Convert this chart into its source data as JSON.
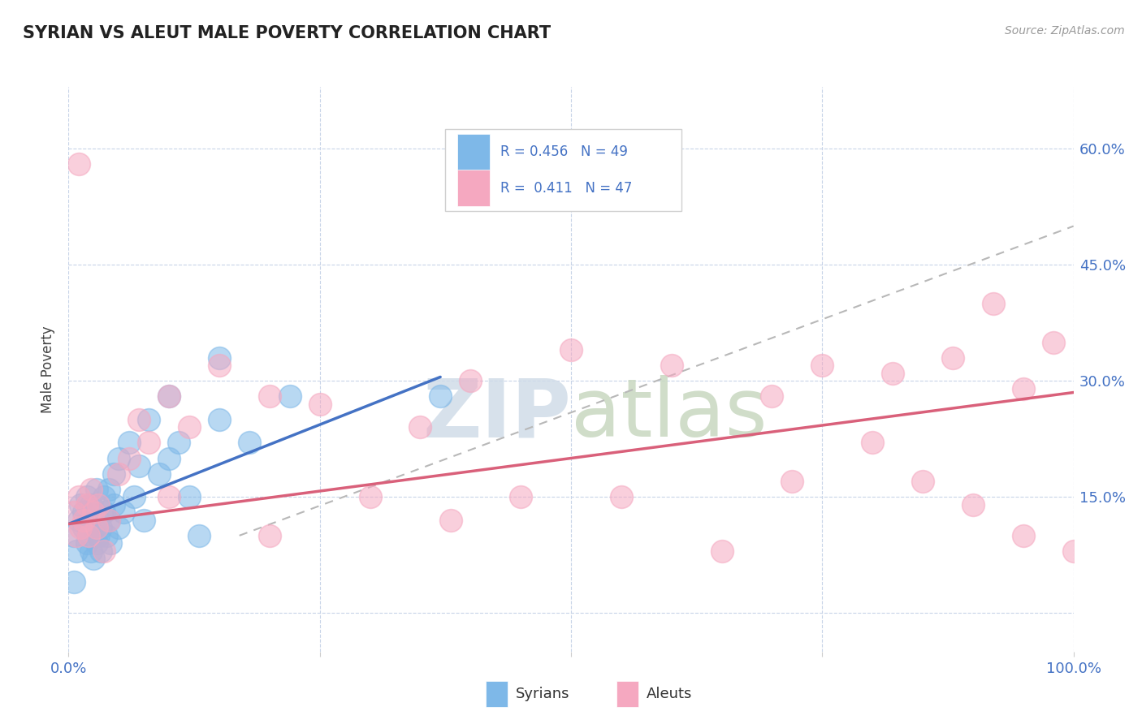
{
  "title": "SYRIAN VS ALEUT MALE POVERTY CORRELATION CHART",
  "source": "Source: ZipAtlas.com",
  "ylabel": "Male Poverty",
  "xlim": [
    0,
    1.0
  ],
  "ylim": [
    -0.05,
    0.68
  ],
  "ytick_positions": [
    0.0,
    0.15,
    0.3,
    0.45,
    0.6
  ],
  "ytick_labels": [
    "",
    "15.0%",
    "30.0%",
    "45.0%",
    "60.0%"
  ],
  "syrian_R": 0.456,
  "syrian_N": 49,
  "aleut_R": 0.411,
  "aleut_N": 47,
  "syrian_color": "#7eb8e8",
  "aleut_color": "#f5a8c0",
  "syrian_line_color": "#4472c4",
  "aleut_line_color": "#d9607a",
  "trend_line_color": "#b8b8b8",
  "background_color": "#ffffff",
  "grid_color": "#c8d4e8",
  "title_color": "#222222",
  "axis_label_color": "#4472c4",
  "watermark_color": "#d0dce8",
  "legend_box_color": "#f0f0f0",
  "legend_border_color": "#d0d0d0",
  "syrian_line_x": [
    0.0,
    0.37
  ],
  "syrian_line_y": [
    0.115,
    0.305
  ],
  "aleut_line_x": [
    0.0,
    1.0
  ],
  "aleut_line_y": [
    0.115,
    0.285
  ],
  "trend_line_x": [
    0.17,
    1.0
  ],
  "trend_line_y": [
    0.1,
    0.5
  ],
  "syrian_x": [
    0.005,
    0.008,
    0.01,
    0.012,
    0.015,
    0.015,
    0.018,
    0.018,
    0.02,
    0.02,
    0.022,
    0.022,
    0.025,
    0.025,
    0.025,
    0.028,
    0.028,
    0.03,
    0.03,
    0.032,
    0.032,
    0.035,
    0.035,
    0.038,
    0.04,
    0.04,
    0.042,
    0.045,
    0.045,
    0.05,
    0.05,
    0.055,
    0.06,
    0.065,
    0.07,
    0.075,
    0.08,
    0.09,
    0.1,
    0.1,
    0.11,
    0.12,
    0.13,
    0.15,
    0.15,
    0.18,
    0.22,
    0.37,
    0.005
  ],
  "syrian_y": [
    0.1,
    0.08,
    0.12,
    0.14,
    0.11,
    0.13,
    0.09,
    0.15,
    0.1,
    0.12,
    0.08,
    0.14,
    0.11,
    0.13,
    0.07,
    0.16,
    0.09,
    0.1,
    0.12,
    0.11,
    0.08,
    0.13,
    0.15,
    0.1,
    0.12,
    0.16,
    0.09,
    0.14,
    0.18,
    0.11,
    0.2,
    0.13,
    0.22,
    0.15,
    0.19,
    0.12,
    0.25,
    0.18,
    0.2,
    0.28,
    0.22,
    0.15,
    0.1,
    0.25,
    0.33,
    0.22,
    0.28,
    0.28,
    0.04
  ],
  "aleut_x": [
    0.005,
    0.008,
    0.01,
    0.012,
    0.015,
    0.018,
    0.02,
    0.022,
    0.025,
    0.028,
    0.03,
    0.035,
    0.04,
    0.05,
    0.06,
    0.07,
    0.08,
    0.1,
    0.1,
    0.12,
    0.15,
    0.2,
    0.2,
    0.25,
    0.3,
    0.35,
    0.38,
    0.4,
    0.45,
    0.5,
    0.55,
    0.6,
    0.65,
    0.7,
    0.72,
    0.75,
    0.8,
    0.82,
    0.85,
    0.88,
    0.9,
    0.92,
    0.95,
    0.95,
    0.98,
    1.0,
    0.01
  ],
  "aleut_y": [
    0.13,
    0.1,
    0.15,
    0.11,
    0.12,
    0.14,
    0.1,
    0.16,
    0.13,
    0.11,
    0.14,
    0.08,
    0.12,
    0.18,
    0.2,
    0.25,
    0.22,
    0.15,
    0.28,
    0.24,
    0.32,
    0.1,
    0.28,
    0.27,
    0.15,
    0.24,
    0.12,
    0.3,
    0.15,
    0.34,
    0.15,
    0.32,
    0.08,
    0.28,
    0.17,
    0.32,
    0.22,
    0.31,
    0.17,
    0.33,
    0.14,
    0.4,
    0.1,
    0.29,
    0.35,
    0.08,
    0.58
  ]
}
